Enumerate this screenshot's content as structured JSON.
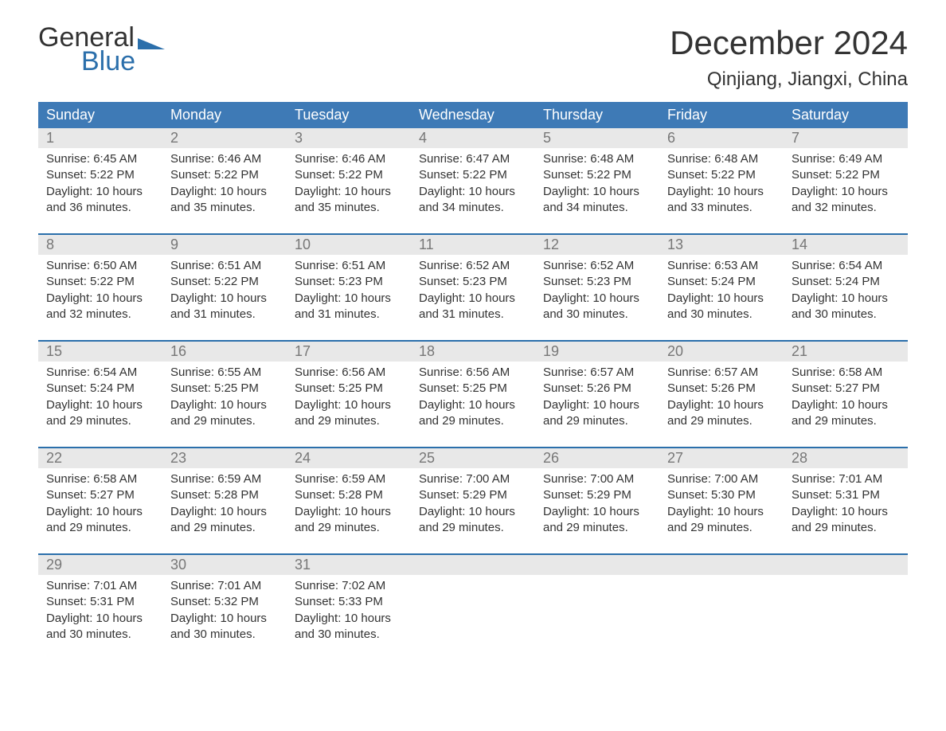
{
  "logo": {
    "text_general": "General",
    "text_blue": "Blue",
    "flag_color": "#2b6fab"
  },
  "header": {
    "month_title": "December 2024",
    "location": "Qinjiang, Jiangxi, China"
  },
  "colors": {
    "header_bar_bg": "#3e7ab6",
    "header_bar_text": "#ffffff",
    "week_border": "#2b6fab",
    "daynum_row_bg": "#e8e8e8",
    "daynum_text": "#777777",
    "body_text": "#333333",
    "background": "#ffffff",
    "logo_blue": "#2b6fab"
  },
  "typography": {
    "month_title_fontsize": 42,
    "location_fontsize": 24,
    "dow_fontsize": 18,
    "daynum_fontsize": 18,
    "cell_fontsize": 15,
    "logo_fontsize": 34
  },
  "days_of_week": [
    "Sunday",
    "Monday",
    "Tuesday",
    "Wednesday",
    "Thursday",
    "Friday",
    "Saturday"
  ],
  "weeks": [
    [
      {
        "day": "1",
        "sunrise": "Sunrise: 6:45 AM",
        "sunset": "Sunset: 5:22 PM",
        "dl1": "Daylight: 10 hours",
        "dl2": "and 36 minutes."
      },
      {
        "day": "2",
        "sunrise": "Sunrise: 6:46 AM",
        "sunset": "Sunset: 5:22 PM",
        "dl1": "Daylight: 10 hours",
        "dl2": "and 35 minutes."
      },
      {
        "day": "3",
        "sunrise": "Sunrise: 6:46 AM",
        "sunset": "Sunset: 5:22 PM",
        "dl1": "Daylight: 10 hours",
        "dl2": "and 35 minutes."
      },
      {
        "day": "4",
        "sunrise": "Sunrise: 6:47 AM",
        "sunset": "Sunset: 5:22 PM",
        "dl1": "Daylight: 10 hours",
        "dl2": "and 34 minutes."
      },
      {
        "day": "5",
        "sunrise": "Sunrise: 6:48 AM",
        "sunset": "Sunset: 5:22 PM",
        "dl1": "Daylight: 10 hours",
        "dl2": "and 34 minutes."
      },
      {
        "day": "6",
        "sunrise": "Sunrise: 6:48 AM",
        "sunset": "Sunset: 5:22 PM",
        "dl1": "Daylight: 10 hours",
        "dl2": "and 33 minutes."
      },
      {
        "day": "7",
        "sunrise": "Sunrise: 6:49 AM",
        "sunset": "Sunset: 5:22 PM",
        "dl1": "Daylight: 10 hours",
        "dl2": "and 32 minutes."
      }
    ],
    [
      {
        "day": "8",
        "sunrise": "Sunrise: 6:50 AM",
        "sunset": "Sunset: 5:22 PM",
        "dl1": "Daylight: 10 hours",
        "dl2": "and 32 minutes."
      },
      {
        "day": "9",
        "sunrise": "Sunrise: 6:51 AM",
        "sunset": "Sunset: 5:22 PM",
        "dl1": "Daylight: 10 hours",
        "dl2": "and 31 minutes."
      },
      {
        "day": "10",
        "sunrise": "Sunrise: 6:51 AM",
        "sunset": "Sunset: 5:23 PM",
        "dl1": "Daylight: 10 hours",
        "dl2": "and 31 minutes."
      },
      {
        "day": "11",
        "sunrise": "Sunrise: 6:52 AM",
        "sunset": "Sunset: 5:23 PM",
        "dl1": "Daylight: 10 hours",
        "dl2": "and 31 minutes."
      },
      {
        "day": "12",
        "sunrise": "Sunrise: 6:52 AM",
        "sunset": "Sunset: 5:23 PM",
        "dl1": "Daylight: 10 hours",
        "dl2": "and 30 minutes."
      },
      {
        "day": "13",
        "sunrise": "Sunrise: 6:53 AM",
        "sunset": "Sunset: 5:24 PM",
        "dl1": "Daylight: 10 hours",
        "dl2": "and 30 minutes."
      },
      {
        "day": "14",
        "sunrise": "Sunrise: 6:54 AM",
        "sunset": "Sunset: 5:24 PM",
        "dl1": "Daylight: 10 hours",
        "dl2": "and 30 minutes."
      }
    ],
    [
      {
        "day": "15",
        "sunrise": "Sunrise: 6:54 AM",
        "sunset": "Sunset: 5:24 PM",
        "dl1": "Daylight: 10 hours",
        "dl2": "and 29 minutes."
      },
      {
        "day": "16",
        "sunrise": "Sunrise: 6:55 AM",
        "sunset": "Sunset: 5:25 PM",
        "dl1": "Daylight: 10 hours",
        "dl2": "and 29 minutes."
      },
      {
        "day": "17",
        "sunrise": "Sunrise: 6:56 AM",
        "sunset": "Sunset: 5:25 PM",
        "dl1": "Daylight: 10 hours",
        "dl2": "and 29 minutes."
      },
      {
        "day": "18",
        "sunrise": "Sunrise: 6:56 AM",
        "sunset": "Sunset: 5:25 PM",
        "dl1": "Daylight: 10 hours",
        "dl2": "and 29 minutes."
      },
      {
        "day": "19",
        "sunrise": "Sunrise: 6:57 AM",
        "sunset": "Sunset: 5:26 PM",
        "dl1": "Daylight: 10 hours",
        "dl2": "and 29 minutes."
      },
      {
        "day": "20",
        "sunrise": "Sunrise: 6:57 AM",
        "sunset": "Sunset: 5:26 PM",
        "dl1": "Daylight: 10 hours",
        "dl2": "and 29 minutes."
      },
      {
        "day": "21",
        "sunrise": "Sunrise: 6:58 AM",
        "sunset": "Sunset: 5:27 PM",
        "dl1": "Daylight: 10 hours",
        "dl2": "and 29 minutes."
      }
    ],
    [
      {
        "day": "22",
        "sunrise": "Sunrise: 6:58 AM",
        "sunset": "Sunset: 5:27 PM",
        "dl1": "Daylight: 10 hours",
        "dl2": "and 29 minutes."
      },
      {
        "day": "23",
        "sunrise": "Sunrise: 6:59 AM",
        "sunset": "Sunset: 5:28 PM",
        "dl1": "Daylight: 10 hours",
        "dl2": "and 29 minutes."
      },
      {
        "day": "24",
        "sunrise": "Sunrise: 6:59 AM",
        "sunset": "Sunset: 5:28 PM",
        "dl1": "Daylight: 10 hours",
        "dl2": "and 29 minutes."
      },
      {
        "day": "25",
        "sunrise": "Sunrise: 7:00 AM",
        "sunset": "Sunset: 5:29 PM",
        "dl1": "Daylight: 10 hours",
        "dl2": "and 29 minutes."
      },
      {
        "day": "26",
        "sunrise": "Sunrise: 7:00 AM",
        "sunset": "Sunset: 5:29 PM",
        "dl1": "Daylight: 10 hours",
        "dl2": "and 29 minutes."
      },
      {
        "day": "27",
        "sunrise": "Sunrise: 7:00 AM",
        "sunset": "Sunset: 5:30 PM",
        "dl1": "Daylight: 10 hours",
        "dl2": "and 29 minutes."
      },
      {
        "day": "28",
        "sunrise": "Sunrise: 7:01 AM",
        "sunset": "Sunset: 5:31 PM",
        "dl1": "Daylight: 10 hours",
        "dl2": "and 29 minutes."
      }
    ],
    [
      {
        "day": "29",
        "sunrise": "Sunrise: 7:01 AM",
        "sunset": "Sunset: 5:31 PM",
        "dl1": "Daylight: 10 hours",
        "dl2": "and 30 minutes."
      },
      {
        "day": "30",
        "sunrise": "Sunrise: 7:01 AM",
        "sunset": "Sunset: 5:32 PM",
        "dl1": "Daylight: 10 hours",
        "dl2": "and 30 minutes."
      },
      {
        "day": "31",
        "sunrise": "Sunrise: 7:02 AM",
        "sunset": "Sunset: 5:33 PM",
        "dl1": "Daylight: 10 hours",
        "dl2": "and 30 minutes."
      },
      null,
      null,
      null,
      null
    ]
  ]
}
